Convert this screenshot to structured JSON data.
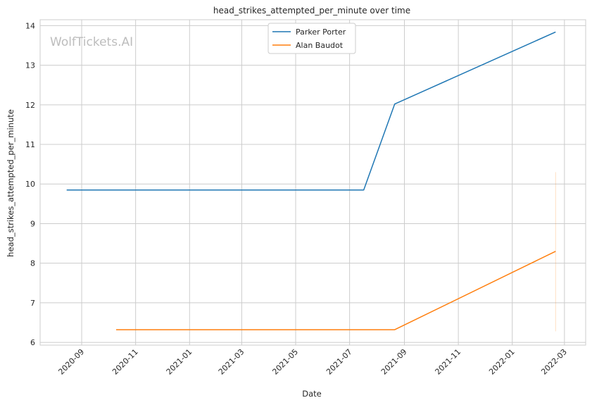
{
  "chart_data": {
    "type": "line",
    "title": "head_strikes_attempted_per_minute over time",
    "xlabel": "Date",
    "ylabel": "head_strikes_attempted_per_minute",
    "watermark": "WolfTickets.AI",
    "x_ticks": [
      "2020-09",
      "2020-11",
      "2021-01",
      "2021-03",
      "2021-05",
      "2021-07",
      "2021-09",
      "2021-11",
      "2022-01",
      "2022-03"
    ],
    "y_ticks": [
      6,
      7,
      8,
      9,
      10,
      11,
      12,
      13,
      14
    ],
    "xlim": [
      "2020-07-16",
      "2022-03-25"
    ],
    "ylim": [
      5.93,
      14.15
    ],
    "grid": true,
    "legend_position": "top-center",
    "series": [
      {
        "name": "Parker Porter",
        "color": "#1f77b4",
        "points": [
          {
            "x": "2020-08-15",
            "y": 9.85
          },
          {
            "x": "2021-07-17",
            "y": 9.85
          },
          {
            "x": "2021-08-21",
            "y": 12.02
          },
          {
            "x": "2022-02-19",
            "y": 13.84
          }
        ]
      },
      {
        "name": "Alan Baudot",
        "color": "#ff7f0e",
        "points": [
          {
            "x": "2020-10-10",
            "y": 6.32
          },
          {
            "x": "2021-08-21",
            "y": 6.32
          },
          {
            "x": "2022-02-19",
            "y": 8.3
          }
        ]
      }
    ],
    "error_bars": [
      {
        "series": "Alan Baudot",
        "x": "2022-02-19",
        "low": 6.28,
        "high": 10.3,
        "color": "#ff7f0e"
      }
    ]
  }
}
